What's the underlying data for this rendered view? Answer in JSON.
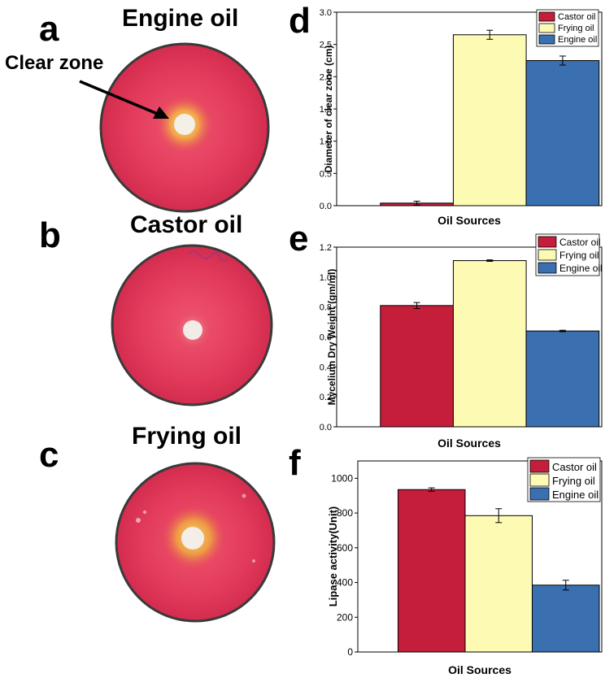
{
  "panels": {
    "a": {
      "letter": "a",
      "title": "Engine oil",
      "annotation": "Clear zone"
    },
    "b": {
      "letter": "b",
      "title": "Castor oil"
    },
    "c": {
      "letter": "c",
      "title": "Frying oil"
    },
    "d": {
      "letter": "d"
    },
    "e": {
      "letter": "e"
    },
    "f": {
      "letter": "f"
    }
  },
  "colors": {
    "castor": "#c41e3a",
    "frying": "#fdfbb3",
    "engine": "#3a6fb0",
    "plate_red": "#e2395a",
    "plate_rim": "#3a3a3a"
  },
  "chart_data": [
    {
      "id": "d",
      "type": "bar",
      "categories": [
        "Castor oil",
        "Frying oil",
        "Engine oil"
      ],
      "values": [
        0.04,
        2.65,
        2.25
      ],
      "errors": [
        0.03,
        0.07,
        0.07
      ],
      "xlabel": "Oil Sources",
      "ylabel": "Diameter of clear zone (cm)",
      "ylim": [
        0,
        3.0
      ],
      "yticks": [
        0.0,
        0.5,
        1.0,
        1.5,
        2.0,
        2.5,
        3.0
      ],
      "ytick_labels": [
        "0.0",
        "0.5",
        "1.0",
        "1.5",
        "2.0",
        "2.5",
        "3.0"
      ],
      "legend": [
        "Castor oil",
        "Frying oil",
        "Engine oil"
      ],
      "legend_position": "top-right"
    },
    {
      "id": "e",
      "type": "bar",
      "categories": [
        "Castor oil",
        "Frying oil",
        "Engine oil"
      ],
      "values": [
        0.81,
        1.11,
        0.64
      ],
      "errors": [
        0.02,
        0.005,
        0.005
      ],
      "xlabel": "Oil Sources",
      "ylabel": "Mycelium Dry Weight (gm/ml)",
      "ylim": [
        0,
        1.2
      ],
      "yticks": [
        0.0,
        0.2,
        0.4,
        0.6,
        0.8,
        1.0,
        1.2
      ],
      "ytick_labels": [
        "0.0",
        "0.2",
        "0.4",
        "0.6",
        "0.8",
        "1.0",
        "1.2"
      ],
      "legend": [
        "Castor oil",
        "Frying oil",
        "Engine oil"
      ],
      "legend_position": "top-right"
    },
    {
      "id": "f",
      "type": "bar",
      "categories": [
        "Castor oil",
        "Frying oil",
        "Engine oil"
      ],
      "values": [
        935,
        785,
        385
      ],
      "errors": [
        10,
        40,
        28
      ],
      "xlabel": "Oil Sources",
      "ylabel": "Lipase activity(Unit)",
      "ylim": [
        0,
        1100
      ],
      "yticks": [
        0,
        200,
        400,
        600,
        800,
        1000
      ],
      "ytick_labels": [
        "0",
        "200",
        "400",
        "600",
        "800",
        "1000"
      ],
      "legend": [
        "Castor oil",
        "Frying oil",
        "Engine oil"
      ],
      "legend_position": "top-right"
    }
  ]
}
